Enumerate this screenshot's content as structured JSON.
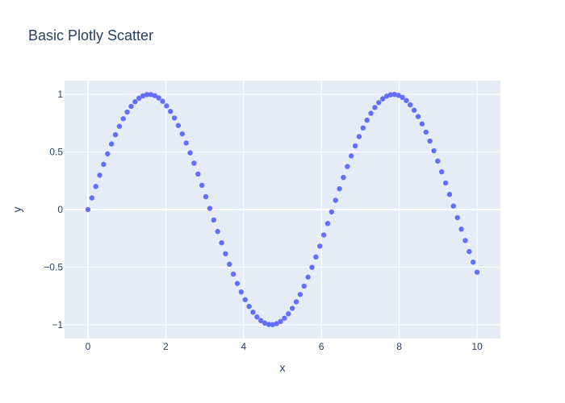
{
  "chart_data": {
    "type": "scatter",
    "title": "Basic Plotly Scatter",
    "xlabel": "x",
    "ylabel": "y",
    "xlim": [
      -0.6,
      10.6
    ],
    "ylim": [
      -1.12,
      1.12
    ],
    "grid": true,
    "legend": "none",
    "series": [
      {
        "x_start": 0,
        "x_end": 10,
        "n_points": 100,
        "function": "sin(x)"
      }
    ],
    "xticks": [
      {
        "value": 0,
        "label": "0"
      },
      {
        "value": 2,
        "label": "2"
      },
      {
        "value": 4,
        "label": "4"
      },
      {
        "value": 6,
        "label": "6"
      },
      {
        "value": 8,
        "label": "8"
      },
      {
        "value": 10,
        "label": "10"
      }
    ],
    "yticks": [
      {
        "value": -1,
        "label": "−1"
      },
      {
        "value": -0.5,
        "label": "−0.5"
      },
      {
        "value": 0,
        "label": "0"
      },
      {
        "value": 0.5,
        "label": "0.5"
      },
      {
        "value": 1,
        "label": "1"
      }
    ]
  },
  "colors": {
    "plot_background": "#e5ecf6",
    "grid": "#ffffff",
    "marker": "#636efa",
    "text": "#2a3f5f"
  }
}
